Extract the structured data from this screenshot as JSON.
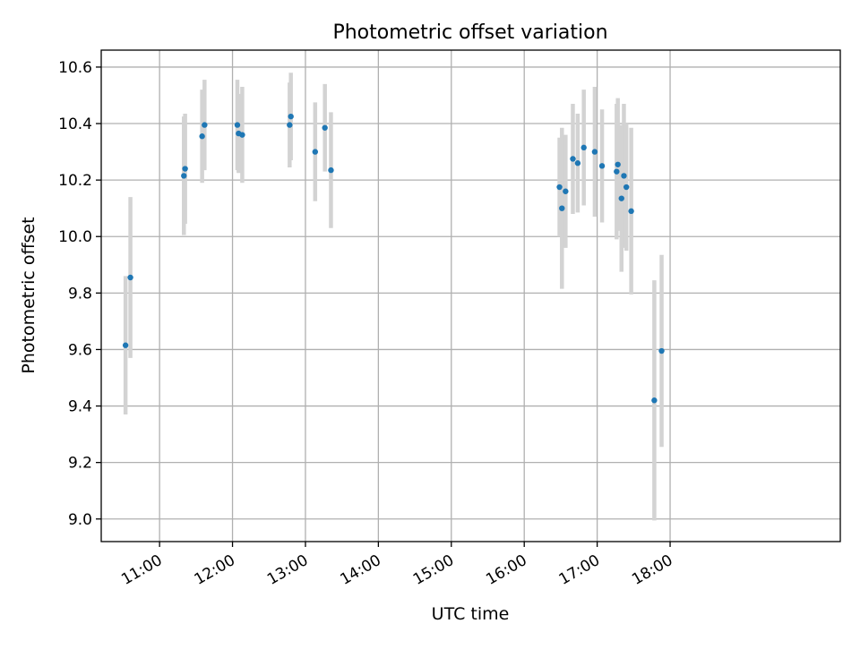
{
  "chart_data": {
    "type": "scatter",
    "title": "Photometric offset variation",
    "xlabel": "UTC time",
    "ylabel": "Photometric offset",
    "x_unit": "UTC time (HH:MM)",
    "xlim": [
      "10:12",
      "20:20"
    ],
    "ylim": [
      8.92,
      10.66
    ],
    "xticks": [
      "11:00",
      "12:00",
      "13:00",
      "14:00",
      "15:00",
      "16:00",
      "17:00",
      "18:00"
    ],
    "yticks": [
      9.0,
      9.2,
      9.4,
      9.6,
      9.8,
      10.0,
      10.2,
      10.4,
      10.6
    ],
    "ytick_labels": [
      "9.0",
      "9.2",
      "9.4",
      "9.6",
      "9.8",
      "10.0",
      "10.2",
      "10.4",
      "10.6"
    ],
    "grid": true,
    "colors": {
      "point": "#1f77b4",
      "errorbar": "#d3d3d3",
      "grid": "#b0b0b0",
      "axes": "#000000"
    },
    "series": [
      {
        "points": [
          {
            "t": "10:32",
            "y": 9.615,
            "err": 0.245
          },
          {
            "t": "10:36",
            "y": 9.855,
            "err": 0.285
          },
          {
            "t": "11:20",
            "y": 10.215,
            "err": 0.21
          },
          {
            "t": "11:21",
            "y": 10.24,
            "err": 0.195
          },
          {
            "t": "11:35",
            "y": 10.355,
            "err": 0.165
          },
          {
            "t": "11:37",
            "y": 10.395,
            "err": 0.16
          },
          {
            "t": "12:04",
            "y": 10.395,
            "err": 0.16
          },
          {
            "t": "12:05",
            "y": 10.365,
            "err": 0.14
          },
          {
            "t": "12:08",
            "y": 10.36,
            "err": 0.17
          },
          {
            "t": "12:47",
            "y": 10.395,
            "err": 0.15
          },
          {
            "t": "12:48",
            "y": 10.425,
            "err": 0.155
          },
          {
            "t": "13:08",
            "y": 10.3,
            "err": 0.175
          },
          {
            "t": "13:16",
            "y": 10.385,
            "err": 0.155
          },
          {
            "t": "13:21",
            "y": 10.235,
            "err": 0.205
          },
          {
            "t": "16:29",
            "y": 10.175,
            "err": 0.175
          },
          {
            "t": "16:31",
            "y": 10.1,
            "err": 0.285
          },
          {
            "t": "16:34",
            "y": 10.16,
            "err": 0.2
          },
          {
            "t": "16:40",
            "y": 10.275,
            "err": 0.195
          },
          {
            "t": "16:44",
            "y": 10.26,
            "err": 0.175
          },
          {
            "t": "16:49",
            "y": 10.315,
            "err": 0.205
          },
          {
            "t": "16:58",
            "y": 10.3,
            "err": 0.23
          },
          {
            "t": "17:04",
            "y": 10.25,
            "err": 0.2
          },
          {
            "t": "17:16",
            "y": 10.23,
            "err": 0.24
          },
          {
            "t": "17:17",
            "y": 10.255,
            "err": 0.235
          },
          {
            "t": "17:20",
            "y": 10.135,
            "err": 0.26
          },
          {
            "t": "17:22",
            "y": 10.215,
            "err": 0.255
          },
          {
            "t": "17:24",
            "y": 10.175,
            "err": 0.225
          },
          {
            "t": "17:28",
            "y": 10.09,
            "err": 0.295
          },
          {
            "t": "17:47",
            "y": 9.42,
            "err": 0.425
          },
          {
            "t": "17:53",
            "y": 9.595,
            "err": 0.34
          }
        ]
      }
    ]
  }
}
